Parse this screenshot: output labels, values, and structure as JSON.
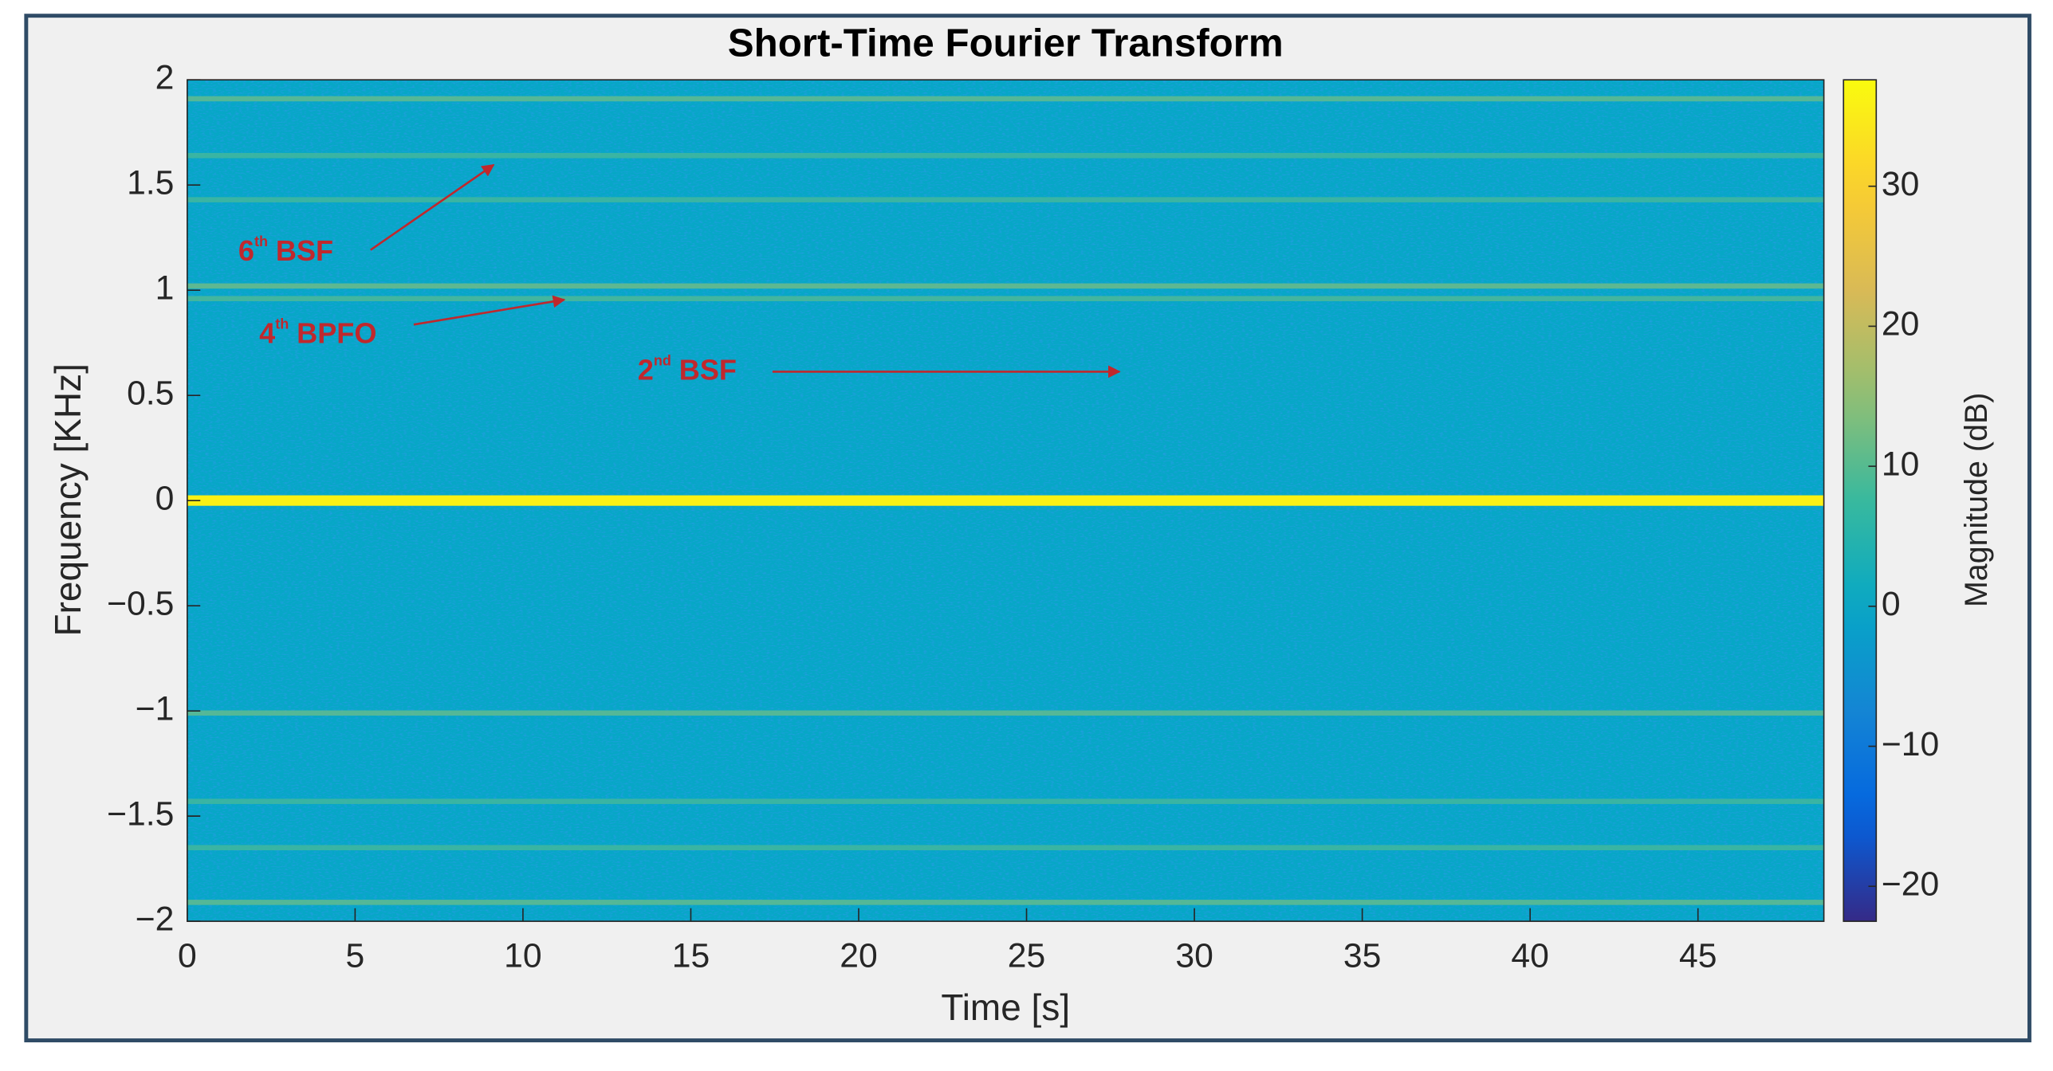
{
  "chart_data": {
    "type": "spectrogram",
    "title": "Short-Time Fourier Transform",
    "x_label": "Time [s]",
    "y_label": "Frequency [KHz]",
    "xlim": [
      0,
      48.75
    ],
    "xticks": [
      0,
      5,
      10,
      15,
      20,
      25,
      30,
      35,
      40,
      45
    ],
    "ylim": [
      -2,
      2
    ],
    "yticks": [
      {
        "value": -2,
        "label": "−2"
      },
      {
        "value": -1.5,
        "label": "−1.5"
      },
      {
        "value": -1,
        "label": "−1"
      },
      {
        "value": -0.5,
        "label": "−0.5"
      },
      0,
      0.5,
      1,
      1.5,
      2
    ],
    "colormap": "parula",
    "colorbar": {
      "label": "Magnitude (dB)",
      "clim": [
        -22.5,
        37.6
      ],
      "ticks": [
        {
          "value": -20,
          "label": "−20"
        },
        {
          "value": -10,
          "label": "−10"
        },
        0,
        10,
        20,
        30
      ]
    },
    "background_magnitude": 0,
    "bands": {
      "frequencies": [
        1.91,
        1.64,
        1.43,
        1.02,
        0.96,
        0,
        -1.01,
        -1.43,
        -1.65,
        -1.91
      ],
      "magnitudes": [
        12,
        9,
        9,
        13,
        10,
        36,
        12,
        9,
        9,
        12
      ]
    },
    "annotations": [
      {
        "number": "6",
        "superscript": "th",
        "label": "BSF"
      },
      {
        "number": "4",
        "superscript": "th",
        "label": "BPFO"
      },
      {
        "number": "2",
        "superscript": "nd",
        "label": "BSF"
      }
    ]
  }
}
